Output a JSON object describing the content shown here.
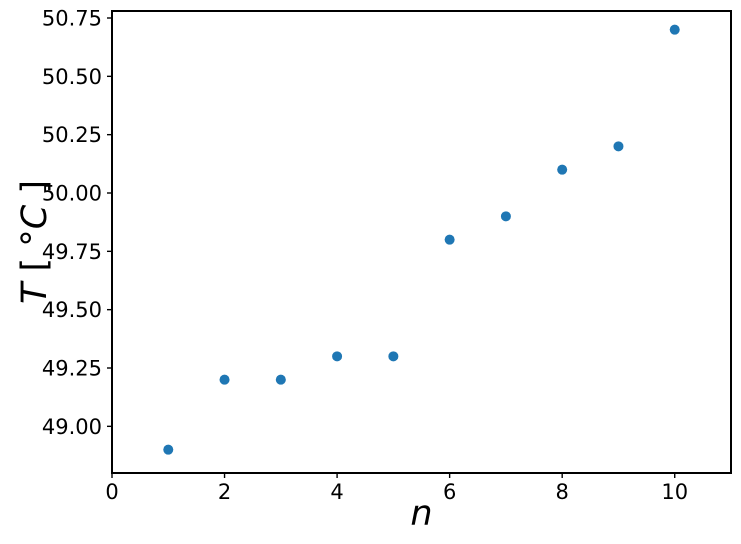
{
  "figure": {
    "background": "#ffffff",
    "spine_color": "#000000",
    "tick_color": "#000000",
    "text_color": "#000000"
  },
  "chart_data": {
    "type": "scatter",
    "title": "",
    "xlabel": "n",
    "ylabel": "T [°C]",
    "ylabel_segments": [
      {
        "text": "T",
        "italic": true
      },
      {
        "text": " [ °",
        "italic": false
      },
      {
        "text": "C",
        "italic": true
      },
      {
        "text": " ]",
        "italic": false
      }
    ],
    "x": [
      1,
      2,
      3,
      4,
      5,
      6,
      7,
      8,
      9,
      10
    ],
    "y": [
      48.9,
      49.2,
      49.2,
      49.3,
      49.3,
      49.8,
      49.9,
      50.1,
      50.2,
      50.7
    ],
    "xlim": [
      0,
      11
    ],
    "ylim": [
      48.8,
      50.78
    ],
    "xticks": [
      0,
      2,
      4,
      6,
      8,
      10
    ],
    "xtick_labels": [
      "0",
      "2",
      "4",
      "6",
      "8",
      "10"
    ],
    "yticks": [
      49.0,
      49.25,
      49.5,
      49.75,
      50.0,
      50.25,
      50.5,
      50.75
    ],
    "ytick_labels": [
      "49.00",
      "49.25",
      "49.50",
      "49.75",
      "50.00",
      "50.25",
      "50.50",
      "50.75"
    ],
    "marker_color": "#1f77b4",
    "marker_radius_px": 5,
    "grid": false,
    "legend_position": "none"
  }
}
